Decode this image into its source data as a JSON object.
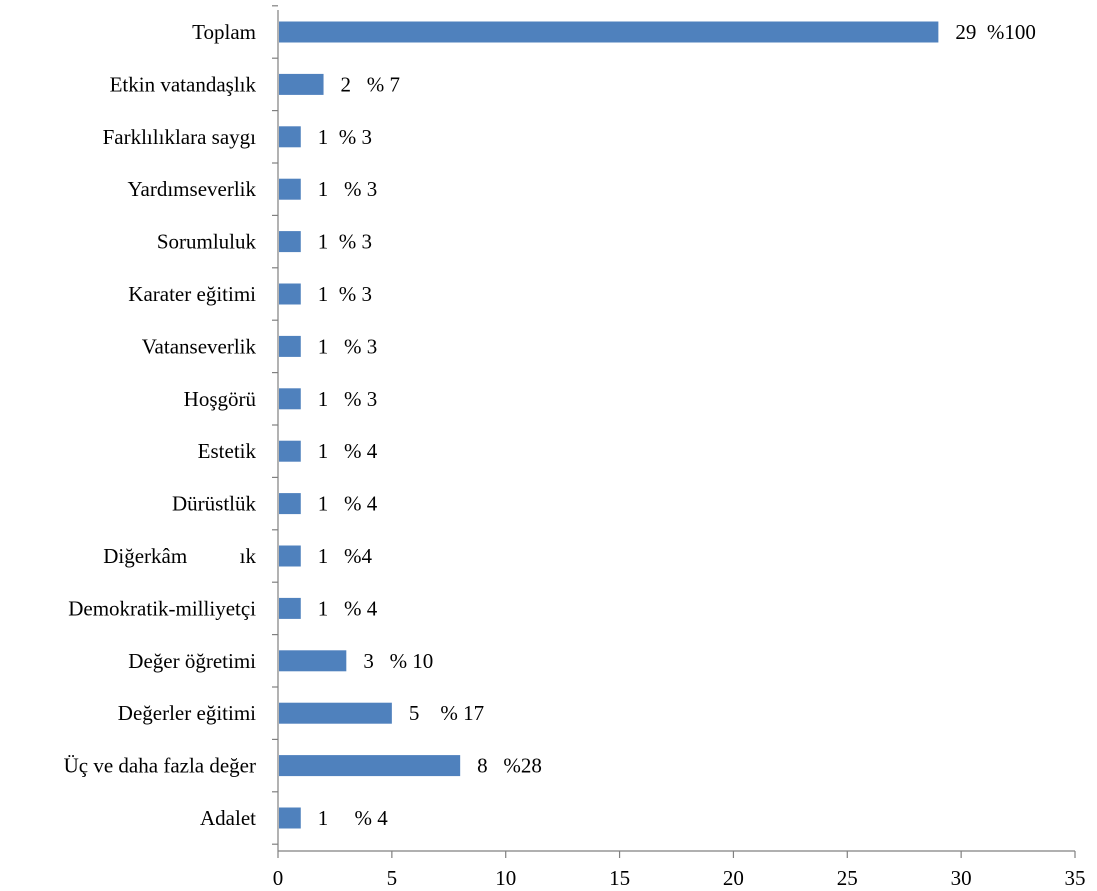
{
  "chart_data": {
    "type": "bar",
    "orientation": "horizontal",
    "title": "",
    "xlabel": "",
    "ylabel": "",
    "categories": [
      "Adalet",
      "Üç ve daha fazla değer",
      "Değerler eğitimi",
      "Değer öğretimi",
      "Demokratik-milliyetçi",
      "Diğerkâm          ık",
      "Dürüstlük",
      "Estetik",
      "Hoşgörü",
      "Vatanseverlik",
      "Karater eğitimi",
      "Sorumluluk",
      "Yardımseverlik",
      "Farklılıklara saygı",
      "Etkin vatandaşlık",
      "Toplam"
    ],
    "values": [
      1,
      8,
      5,
      3,
      1,
      1,
      1,
      1,
      1,
      1,
      1,
      1,
      1,
      1,
      2,
      29
    ],
    "data_labels": [
      "1     % 4",
      "8   %28",
      "5    % 17",
      "3   % 10",
      "1   % 4",
      "1   %4",
      "1   % 4",
      "1   % 4",
      "1   % 3",
      "1   % 3",
      "1  % 3",
      "1  % 3",
      "1   % 3",
      "1  % 3",
      "2   % 7",
      "29  %100"
    ],
    "xlim": [
      0,
      35
    ],
    "x_ticks": [
      0,
      5,
      10,
      15,
      20,
      25,
      30,
      35
    ],
    "grid": false,
    "legend": "none",
    "bar_color": "#4F81BD"
  }
}
